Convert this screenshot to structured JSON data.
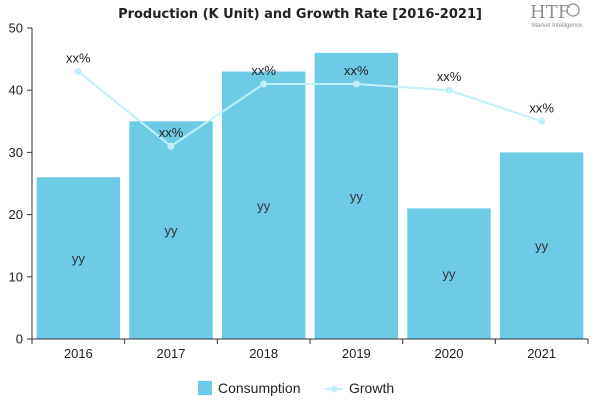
{
  "chart_data": {
    "type": "bar",
    "title": "Production (K Unit) and Growth Rate [2016-2021]",
    "categories": [
      "2016",
      "2017",
      "2018",
      "2019",
      "2020",
      "2021"
    ],
    "ylim": [
      0,
      50
    ],
    "yticks": [
      0,
      10,
      20,
      30,
      40,
      50
    ],
    "series": [
      {
        "name": "Consumption",
        "type": "bar",
        "color": "#6dcbe6",
        "values": [
          26,
          35,
          43,
          46,
          21,
          30
        ],
        "data_labels": [
          "yy",
          "yy",
          "yy",
          "yy",
          "yy",
          "yy"
        ]
      },
      {
        "name": "Growth",
        "type": "line",
        "color": "#bff0f7",
        "values": [
          43,
          31,
          41,
          41,
          40,
          35
        ],
        "data_labels": [
          "xx%",
          "xx%",
          "xx%",
          "xx%",
          "xx%",
          "xx%"
        ]
      }
    ],
    "legend": {
      "position": "bottom",
      "entries": [
        "Consumption",
        "Growth"
      ]
    },
    "grid": false
  },
  "logo": {
    "text": "HTF",
    "subtext": "Market Intelligence"
  }
}
